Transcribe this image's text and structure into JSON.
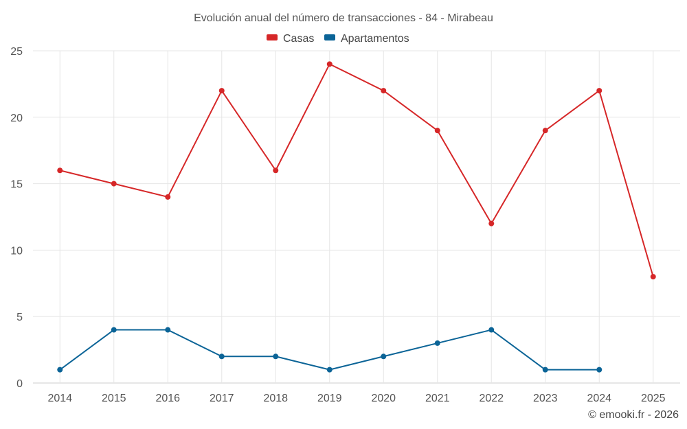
{
  "chart_data": {
    "type": "line",
    "title": "Evolución anual del número de transacciones - 84 - Mirabeau",
    "categories": [
      "2014",
      "2015",
      "2016",
      "2017",
      "2018",
      "2019",
      "2020",
      "2021",
      "2022",
      "2023",
      "2024",
      "2025"
    ],
    "ylim": [
      0,
      25
    ],
    "yticks": [
      0,
      5,
      10,
      15,
      20,
      25
    ],
    "grid": true,
    "legend_position": "top-center",
    "series": [
      {
        "name": "Casas",
        "color": "#d62728",
        "values": [
          16,
          15,
          14,
          22,
          16,
          24,
          22,
          19,
          12,
          19,
          22,
          8
        ]
      },
      {
        "name": "Apartamentos",
        "color": "#0b6497",
        "values": [
          1,
          4,
          4,
          2,
          2,
          1,
          2,
          3,
          4,
          1,
          1,
          null
        ]
      }
    ]
  },
  "credit": "© emooki.fr - 2026"
}
